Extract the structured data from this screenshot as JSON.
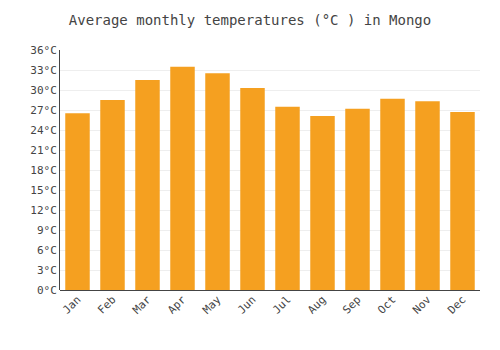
{
  "chart_data": {
    "type": "bar",
    "title": "Average monthly temperatures (°C ) in Mongo",
    "categories": [
      "Jan",
      "Feb",
      "Mar",
      "Apr",
      "May",
      "Jun",
      "Jul",
      "Aug",
      "Sep",
      "Oct",
      "Nov",
      "Dec"
    ],
    "values": [
      26.5,
      28.5,
      31.5,
      33.5,
      32.5,
      30.3,
      27.5,
      26.1,
      27.2,
      28.7,
      28.3,
      26.7
    ],
    "color": "#F5A020",
    "ylim": [
      0,
      36
    ],
    "yticks": [
      {
        "value": 0,
        "label": "0°C"
      },
      {
        "value": 3,
        "label": "3°C"
      },
      {
        "value": 6,
        "label": "6°C"
      },
      {
        "value": 9,
        "label": "9°C"
      },
      {
        "value": 12,
        "label": "12°C"
      },
      {
        "value": 15,
        "label": "15°C"
      },
      {
        "value": 18,
        "label": "18°C"
      },
      {
        "value": 21,
        "label": "21°C"
      },
      {
        "value": 24,
        "label": "24°C"
      },
      {
        "value": 27,
        "label": "27°C"
      },
      {
        "value": 30,
        "label": "30°C"
      },
      {
        "value": 33,
        "label": "33°C"
      },
      {
        "value": 36,
        "label": "36°C"
      }
    ],
    "grid": true
  }
}
